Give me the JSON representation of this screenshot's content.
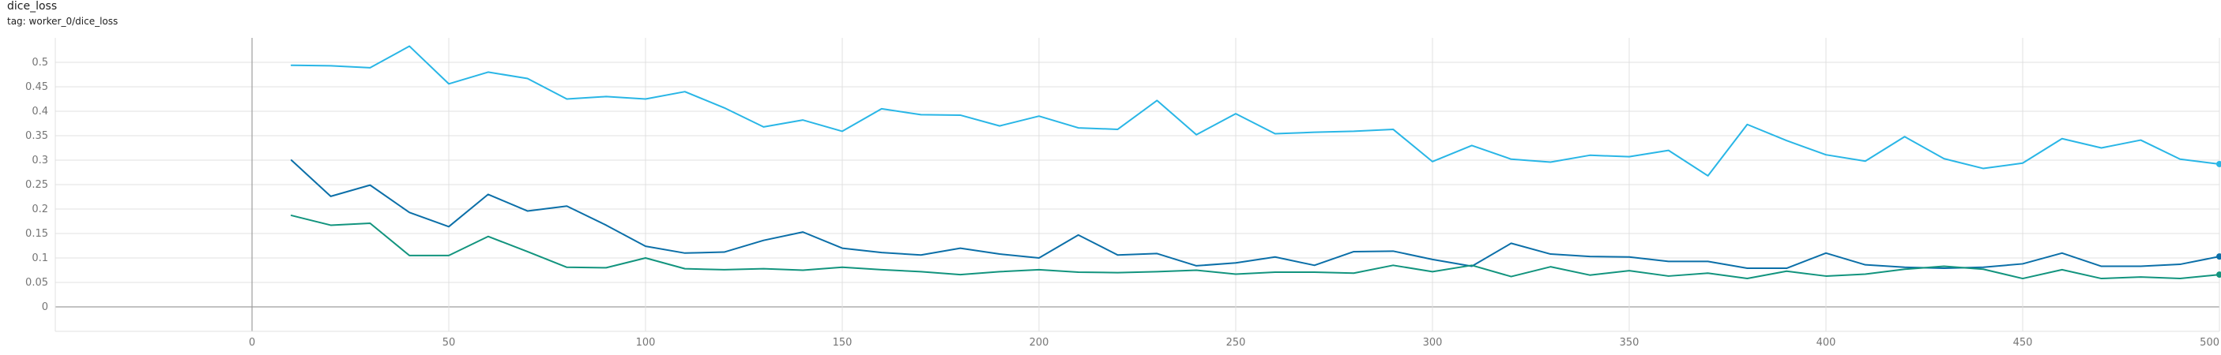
{
  "header": {
    "title": "dice_loss",
    "tag": "tag: worker_0/dice_loss"
  },
  "colors": {
    "series_light": "#29b6e6",
    "series_dark": "#0b6fa8",
    "series_teal": "#12947e",
    "grid": "#e0e0e0",
    "axis": "#9e9e9e"
  },
  "chart_data": {
    "type": "line",
    "title": "dice_loss",
    "subtitle": "tag: worker_0/dice_loss",
    "xlabel": "",
    "ylabel": "",
    "xlim": [
      -50,
      500
    ],
    "ylim": [
      -0.05,
      0.55
    ],
    "x_ticks": [
      0,
      50,
      100,
      150,
      200,
      250,
      300,
      350,
      400,
      450,
      500
    ],
    "y_ticks": [
      0,
      0.05,
      0.1,
      0.15,
      0.2,
      0.25,
      0.3,
      0.35,
      0.4,
      0.45,
      0.5
    ],
    "x_tick_labels": [
      "0",
      "50",
      "100",
      "150",
      "200",
      "250",
      "300",
      "350",
      "400",
      "450",
      "500"
    ],
    "y_tick_labels": [
      "0",
      "0.05",
      "0.1",
      "0.15",
      "0.2",
      "0.25",
      "0.3",
      "0.35",
      "0.4",
      "0.45",
      "0.5"
    ],
    "grid": true,
    "x": [
      10,
      20,
      30,
      40,
      50,
      60,
      70,
      80,
      90,
      100,
      110,
      120,
      130,
      140,
      150,
      160,
      170,
      180,
      190,
      200,
      210,
      220,
      230,
      240,
      250,
      260,
      270,
      280,
      290,
      300,
      310,
      320,
      330,
      340,
      350,
      360,
      370,
      380,
      390,
      400,
      410,
      420,
      430,
      440,
      450,
      460,
      470,
      480,
      490,
      500
    ],
    "series": [
      {
        "color": "#29b6e6",
        "values": [
          0.494,
          0.493,
          0.489,
          0.533,
          0.456,
          0.48,
          0.467,
          0.425,
          0.43,
          0.425,
          0.44,
          0.407,
          0.368,
          0.382,
          0.359,
          0.405,
          0.393,
          0.392,
          0.37,
          0.39,
          0.366,
          0.363,
          0.422,
          0.352,
          0.395,
          0.354,
          0.357,
          0.359,
          0.363,
          0.297,
          0.33,
          0.302,
          0.296,
          0.31,
          0.307,
          0.32,
          0.268,
          0.373,
          0.34,
          0.311,
          0.298,
          0.348,
          0.303,
          0.283,
          0.294,
          0.344,
          0.325,
          0.341,
          0.302,
          0.292
        ]
      },
      {
        "color": "#0b6fa8",
        "values": [
          0.3,
          0.226,
          0.249,
          0.193,
          0.164,
          0.23,
          0.196,
          0.206,
          0.167,
          0.124,
          0.11,
          0.112,
          0.136,
          0.153,
          0.12,
          0.111,
          0.106,
          0.12,
          0.108,
          0.1,
          0.147,
          0.106,
          0.109,
          0.084,
          0.09,
          0.102,
          0.085,
          0.113,
          0.114,
          0.097,
          0.083,
          0.13,
          0.108,
          0.103,
          0.102,
          0.093,
          0.093,
          0.079,
          0.079,
          0.11,
          0.086,
          0.081,
          0.079,
          0.081,
          0.088,
          0.11,
          0.083,
          0.083,
          0.087,
          0.103
        ]
      },
      {
        "color": "#12947e",
        "values": [
          0.187,
          0.167,
          0.171,
          0.105,
          0.105,
          0.144,
          0.113,
          0.081,
          0.08,
          0.1,
          0.078,
          0.076,
          0.078,
          0.075,
          0.081,
          0.076,
          0.072,
          0.066,
          0.072,
          0.076,
          0.071,
          0.07,
          0.072,
          0.075,
          0.067,
          0.071,
          0.071,
          0.069,
          0.085,
          0.072,
          0.085,
          0.062,
          0.082,
          0.065,
          0.074,
          0.063,
          0.069,
          0.058,
          0.073,
          0.063,
          0.067,
          0.077,
          0.083,
          0.077,
          0.058,
          0.076,
          0.058,
          0.061,
          0.058,
          0.066
        ]
      }
    ]
  }
}
